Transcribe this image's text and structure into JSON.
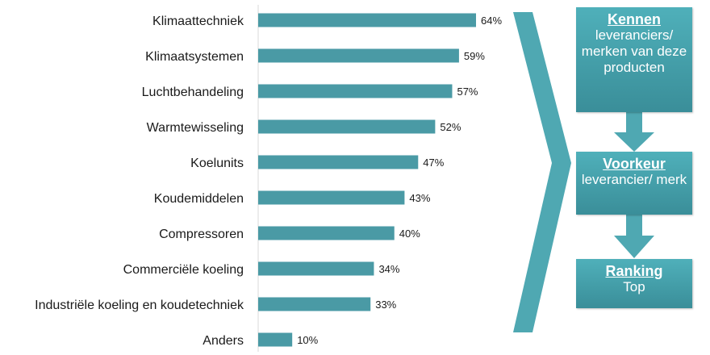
{
  "chart_data": {
    "type": "bar",
    "orientation": "horizontal",
    "categories": [
      "Klimaattechniek",
      "Klimaatsystemen",
      "Luchtbehandeling",
      "Warmtewisseling",
      "Koelunits",
      "Koudemiddelen",
      "Compressoren",
      "Commerciële koeling",
      "Industriële koeling en koudetechniek",
      "Anders"
    ],
    "values": [
      64,
      59,
      57,
      52,
      47,
      43,
      40,
      34,
      33,
      10
    ],
    "value_labels": [
      "64%",
      "59%",
      "57%",
      "52%",
      "47%",
      "43%",
      "40%",
      "34%",
      "33%",
      "10%"
    ],
    "title": "",
    "xlabel": "",
    "ylabel": "",
    "xlim": [
      0,
      100
    ],
    "grid": false,
    "bar_color": "#4a9aa5"
  },
  "funnel": {
    "color": "#4fa8b2",
    "steps": [
      {
        "heading": "Kennen",
        "text": "leveranciers/ merken van deze producten"
      },
      {
        "heading": "Voorkeur",
        "text": "leverancier/ merk"
      },
      {
        "heading": "Ranking",
        "text": "Top"
      }
    ]
  }
}
